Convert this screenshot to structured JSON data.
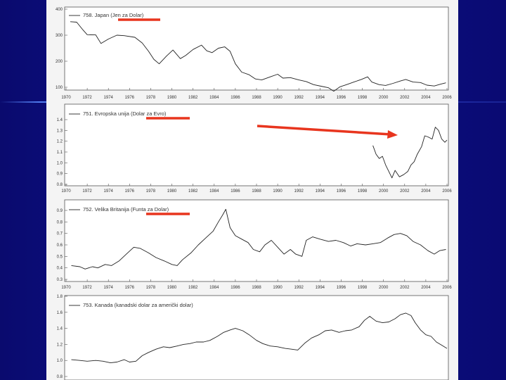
{
  "colors": {
    "series_line": "#222222",
    "highlight": "#e8351e",
    "background": "#0d1590",
    "sheet": "#f4f4f4"
  },
  "chart_data": [
    {
      "type": "line",
      "title": "758. Japan (Jen za Dolar)",
      "ylim": [
        100,
        400
      ],
      "yticks": [
        "400",
        "300",
        "200",
        "100"
      ],
      "xticks": [
        "1970",
        "1972",
        "1974",
        "1976",
        "1978",
        "1980",
        "1982",
        "1984",
        "1986",
        "1988",
        "1990",
        "1992",
        "1994",
        "1996",
        "1998",
        "2000",
        "2002",
        "2004",
        "2006"
      ],
      "series": [
        {
          "values": [
            [
              1970.4,
              352
            ],
            [
              1971.0,
              350
            ],
            [
              1971.6,
              320
            ],
            [
              1972.0,
              302
            ],
            [
              1972.8,
              301
            ],
            [
              1973.3,
              268
            ],
            [
              1974.0,
              285
            ],
            [
              1974.8,
              300
            ],
            [
              1975.5,
              298
            ],
            [
              1976.5,
              292
            ],
            [
              1977.2,
              270
            ],
            [
              1977.8,
              238
            ],
            [
              1978.3,
              207
            ],
            [
              1978.8,
              190
            ],
            [
              1979.5,
              220
            ],
            [
              1980.1,
              243
            ],
            [
              1980.8,
              210
            ],
            [
              1981.3,
              222
            ],
            [
              1982.0,
              245
            ],
            [
              1982.8,
              262
            ],
            [
              1983.3,
              240
            ],
            [
              1983.8,
              233
            ],
            [
              1984.4,
              250
            ],
            [
              1985.0,
              255
            ],
            [
              1985.5,
              238
            ],
            [
              1986.0,
              190
            ],
            [
              1986.6,
              158
            ],
            [
              1987.3,
              148
            ],
            [
              1987.9,
              132
            ],
            [
              1988.5,
              128
            ],
            [
              1989.3,
              140
            ],
            [
              1990.0,
              150
            ],
            [
              1990.5,
              135
            ],
            [
              1991.2,
              137
            ],
            [
              1992.0,
              128
            ],
            [
              1992.7,
              122
            ],
            [
              1993.4,
              110
            ],
            [
              1994.1,
              104
            ],
            [
              1994.8,
              98
            ],
            [
              1995.3,
              85
            ],
            [
              1995.9,
              102
            ],
            [
              1996.5,
              110
            ],
            [
              1997.2,
              120
            ],
            [
              1997.9,
              130
            ],
            [
              1998.5,
              140
            ],
            [
              1998.9,
              120
            ],
            [
              1999.6,
              110
            ],
            [
              2000.2,
              107
            ],
            [
              2000.9,
              115
            ],
            [
              2001.6,
              124
            ],
            [
              2002.1,
              130
            ],
            [
              2002.8,
              120
            ],
            [
              2003.5,
              118
            ],
            [
              2004.1,
              108
            ],
            [
              2004.8,
              105
            ],
            [
              2005.4,
              112
            ],
            [
              2005.9,
              117
            ]
          ]
        }
      ]
    },
    {
      "type": "line",
      "title": "751. Evropska unija (Dolar za Evro)",
      "ylim": [
        0.8,
        1.4
      ],
      "yticks": [
        "1.4",
        "1.3",
        "1.2",
        "1.1",
        "1.0",
        "0.9",
        "0.8"
      ],
      "xticks": [
        "1970",
        "1972",
        "1974",
        "1976",
        "1978",
        "1980",
        "1982",
        "1984",
        "1986",
        "1988",
        "1990",
        "1992",
        "1994",
        "1996",
        "1998",
        "2000",
        "2002",
        "2004",
        "2006"
      ],
      "series": [
        {
          "values": [
            [
              1999.0,
              1.16
            ],
            [
              1999.3,
              1.08
            ],
            [
              1999.6,
              1.04
            ],
            [
              1999.9,
              1.06
            ],
            [
              2000.2,
              0.98
            ],
            [
              2000.5,
              0.92
            ],
            [
              2000.8,
              0.86
            ],
            [
              2001.1,
              0.93
            ],
            [
              2001.5,
              0.87
            ],
            [
              2001.9,
              0.89
            ],
            [
              2002.3,
              0.92
            ],
            [
              2002.6,
              0.98
            ],
            [
              2002.9,
              1.01
            ],
            [
              2003.2,
              1.08
            ],
            [
              2003.6,
              1.15
            ],
            [
              2003.9,
              1.25
            ],
            [
              2004.2,
              1.24
            ],
            [
              2004.6,
              1.22
            ],
            [
              2004.9,
              1.33
            ],
            [
              2005.2,
              1.3
            ],
            [
              2005.5,
              1.22
            ],
            [
              2005.8,
              1.19
            ],
            [
              2006.0,
              1.21
            ]
          ]
        }
      ]
    },
    {
      "type": "line",
      "title": "752. Velika Britanija (Funta za Dolar)",
      "ylim": [
        0.3,
        0.9
      ],
      "yticks": [
        "0.9",
        "0.8",
        "0.7",
        "0.6",
        "0.5",
        "0.4",
        "0.3"
      ],
      "xticks": [
        "1970",
        "1972",
        "1974",
        "1976",
        "1978",
        "1980",
        "1982",
        "1984",
        "1986",
        "1988",
        "1990",
        "1992",
        "1994",
        "1996",
        "1998",
        "2000",
        "2002",
        "2004",
        "2006"
      ],
      "series": [
        {
          "values": [
            [
              1970.5,
              0.42
            ],
            [
              1971.3,
              0.41
            ],
            [
              1971.8,
              0.39
            ],
            [
              1972.5,
              0.41
            ],
            [
              1973.0,
              0.4
            ],
            [
              1973.7,
              0.43
            ],
            [
              1974.3,
              0.42
            ],
            [
              1975.0,
              0.46
            ],
            [
              1975.7,
              0.52
            ],
            [
              1976.4,
              0.58
            ],
            [
              1977.0,
              0.57
            ],
            [
              1977.8,
              0.53
            ],
            [
              1978.5,
              0.49
            ],
            [
              1979.3,
              0.46
            ],
            [
              1980.0,
              0.43
            ],
            [
              1980.5,
              0.42
            ],
            [
              1981.0,
              0.47
            ],
            [
              1981.8,
              0.53
            ],
            [
              1982.5,
              0.6
            ],
            [
              1983.2,
              0.66
            ],
            [
              1983.9,
              0.72
            ],
            [
              1984.4,
              0.8
            ],
            [
              1984.8,
              0.86
            ],
            [
              1985.1,
              0.91
            ],
            [
              1985.5,
              0.75
            ],
            [
              1986.0,
              0.68
            ],
            [
              1986.6,
              0.65
            ],
            [
              1987.2,
              0.62
            ],
            [
              1987.7,
              0.56
            ],
            [
              1988.3,
              0.54
            ],
            [
              1988.8,
              0.6
            ],
            [
              1989.4,
              0.64
            ],
            [
              1990.0,
              0.58
            ],
            [
              1990.6,
              0.52
            ],
            [
              1991.2,
              0.56
            ],
            [
              1991.7,
              0.52
            ],
            [
              1992.3,
              0.5
            ],
            [
              1992.7,
              0.64
            ],
            [
              1993.3,
              0.67
            ],
            [
              1994.0,
              0.65
            ],
            [
              1994.8,
              0.63
            ],
            [
              1995.5,
              0.64
            ],
            [
              1996.2,
              0.62
            ],
            [
              1996.9,
              0.59
            ],
            [
              1997.5,
              0.61
            ],
            [
              1998.3,
              0.6
            ],
            [
              1999.0,
              0.61
            ],
            [
              1999.7,
              0.62
            ],
            [
              2000.4,
              0.66
            ],
            [
              2001.0,
              0.69
            ],
            [
              2001.6,
              0.7
            ],
            [
              2002.2,
              0.68
            ],
            [
              2002.8,
              0.63
            ],
            [
              2003.5,
              0.6
            ],
            [
              2004.2,
              0.55
            ],
            [
              2004.8,
              0.52
            ],
            [
              2005.3,
              0.55
            ],
            [
              2005.9,
              0.56
            ]
          ]
        }
      ]
    },
    {
      "type": "line",
      "title": "753. Kanada (kanadski dolar za američki dolar)",
      "ylim": [
        0.8,
        1.8
      ],
      "yticks": [
        "1.8",
        "1.6",
        "1.4",
        "1.2",
        "1.0",
        "0.8"
      ],
      "series": [
        {
          "values": [
            [
              1970.5,
              1.01
            ],
            [
              1971.3,
              1.0
            ],
            [
              1972.0,
              0.99
            ],
            [
              1972.8,
              1.0
            ],
            [
              1973.5,
              0.99
            ],
            [
              1974.2,
              0.97
            ],
            [
              1974.8,
              0.98
            ],
            [
              1975.5,
              1.01
            ],
            [
              1976.0,
              0.98
            ],
            [
              1976.6,
              0.99
            ],
            [
              1977.2,
              1.06
            ],
            [
              1977.8,
              1.1
            ],
            [
              1978.5,
              1.14
            ],
            [
              1979.2,
              1.17
            ],
            [
              1979.8,
              1.16
            ],
            [
              1980.5,
              1.18
            ],
            [
              1981.1,
              1.2
            ],
            [
              1981.7,
              1.21
            ],
            [
              1982.3,
              1.23
            ],
            [
              1983.0,
              1.23
            ],
            [
              1983.6,
              1.25
            ],
            [
              1984.3,
              1.3
            ],
            [
              1984.9,
              1.35
            ],
            [
              1985.5,
              1.38
            ],
            [
              1986.0,
              1.4
            ],
            [
              1986.7,
              1.37
            ],
            [
              1987.3,
              1.32
            ],
            [
              1988.0,
              1.25
            ],
            [
              1988.6,
              1.21
            ],
            [
              1989.3,
              1.18
            ],
            [
              1990.0,
              1.17
            ],
            [
              1990.7,
              1.15
            ],
            [
              1991.3,
              1.14
            ],
            [
              1991.9,
              1.13
            ],
            [
              1992.6,
              1.22
            ],
            [
              1993.2,
              1.28
            ],
            [
              1993.9,
              1.32
            ],
            [
              1994.5,
              1.37
            ],
            [
              1995.1,
              1.38
            ],
            [
              1995.8,
              1.35
            ],
            [
              1996.4,
              1.37
            ],
            [
              1997.0,
              1.38
            ],
            [
              1997.7,
              1.42
            ],
            [
              1998.2,
              1.5
            ],
            [
              1998.7,
              1.55
            ],
            [
              1999.3,
              1.49
            ],
            [
              1999.9,
              1.47
            ],
            [
              2000.5,
              1.48
            ],
            [
              2001.1,
              1.52
            ],
            [
              2001.6,
              1.57
            ],
            [
              2002.1,
              1.59
            ],
            [
              2002.6,
              1.56
            ],
            [
              2003.0,
              1.47
            ],
            [
              2003.5,
              1.38
            ],
            [
              2004.0,
              1.32
            ],
            [
              2004.5,
              1.3
            ],
            [
              2005.0,
              1.23
            ],
            [
              2005.5,
              1.19
            ],
            [
              2006.0,
              1.15
            ]
          ]
        }
      ]
    }
  ]
}
